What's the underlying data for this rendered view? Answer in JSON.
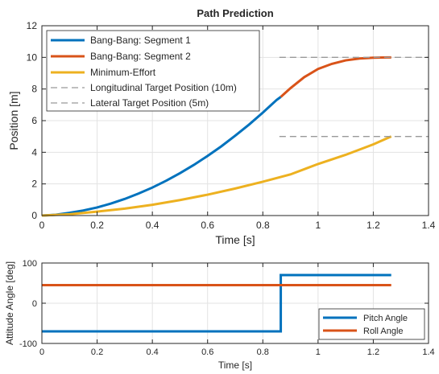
{
  "chart_data": [
    {
      "type": "line",
      "title": "Path Prediction",
      "xlabel": "Time [s]",
      "ylabel": "Position [m]",
      "xlim": [
        0,
        1.4
      ],
      "ylim": [
        0,
        12
      ],
      "xticks": [
        0,
        0.2,
        0.4,
        0.6,
        0.8,
        1,
        1.2,
        1.4
      ],
      "xtick_labels": [
        "0",
        "0.2",
        "0.4",
        "0.6",
        "0.8",
        "1",
        "1.2",
        "1.4"
      ],
      "yticks": [
        0,
        2,
        4,
        6,
        8,
        10,
        12
      ],
      "ytick_labels": [
        "0",
        "2",
        "4",
        "6",
        "8",
        "10",
        "12"
      ],
      "grid": true,
      "legend_position": "top-left",
      "series": [
        {
          "name": "Bang-Bang: Segment 1",
          "color": "#0072BD",
          "style": "solid",
          "x": [
            0,
            0.05,
            0.1,
            0.15,
            0.2,
            0.25,
            0.3,
            0.35,
            0.4,
            0.45,
            0.5,
            0.55,
            0.6,
            0.65,
            0.7,
            0.75,
            0.8,
            0.85,
            0.865
          ],
          "y": [
            0,
            0.05,
            0.17,
            0.32,
            0.51,
            0.76,
            1.05,
            1.39,
            1.77,
            2.2,
            2.68,
            3.2,
            3.77,
            4.38,
            5.05,
            5.75,
            6.51,
            7.31,
            7.5
          ]
        },
        {
          "name": "Bang-Bang: Segment 2",
          "color": "#D95319",
          "style": "solid",
          "x": [
            0.865,
            0.9,
            0.95,
            1.0,
            1.05,
            1.1,
            1.15,
            1.2,
            1.25,
            1.265
          ],
          "y": [
            7.5,
            8.05,
            8.75,
            9.27,
            9.59,
            9.81,
            9.93,
            9.98,
            10.0,
            10.0
          ]
        },
        {
          "name": "Minimum-Effort",
          "color": "#EDB120",
          "style": "solid",
          "x": [
            0,
            0.1,
            0.2,
            0.3,
            0.4,
            0.5,
            0.6,
            0.7,
            0.8,
            0.9,
            1.0,
            1.1,
            1.2,
            1.265
          ],
          "y": [
            0,
            0.08,
            0.25,
            0.44,
            0.68,
            0.98,
            1.32,
            1.71,
            2.14,
            2.6,
            3.26,
            3.84,
            4.5,
            5.0
          ]
        },
        {
          "name": "Longitudinal Target Position (10m)",
          "color": "#999999",
          "style": "dashed",
          "x": [
            0.86,
            1.4
          ],
          "y": [
            10,
            10
          ]
        },
        {
          "name": "Lateral Target Position (5m)",
          "color": "#999999",
          "style": "dashed",
          "x": [
            0.86,
            1.4
          ],
          "y": [
            5,
            5
          ]
        }
      ]
    },
    {
      "type": "line",
      "title": "",
      "xlabel": "Time [s]",
      "ylabel": "Attitude Angle [deg]",
      "xlim": [
        0,
        1.4
      ],
      "ylim": [
        -100,
        100
      ],
      "xticks": [
        0,
        0.2,
        0.4,
        0.6,
        0.8,
        1,
        1.2,
        1.4
      ],
      "xtick_labels": [
        "0",
        "0.2",
        "0.4",
        "0.6",
        "0.8",
        "1",
        "1.2",
        "1.4"
      ],
      "yticks": [
        -100,
        0,
        100
      ],
      "ytick_labels": [
        "-100",
        "0",
        "100"
      ],
      "grid": true,
      "legend_position": "bottom-right",
      "series": [
        {
          "name": "Pitch Angle",
          "color": "#0072BD",
          "style": "solid",
          "x": [
            0,
            0.865,
            0.865,
            1.265
          ],
          "y": [
            -70,
            -70,
            70,
            70
          ]
        },
        {
          "name": "Roll Angle",
          "color": "#D95319",
          "style": "solid",
          "x": [
            0,
            1.265
          ],
          "y": [
            45,
            45
          ]
        }
      ]
    }
  ]
}
